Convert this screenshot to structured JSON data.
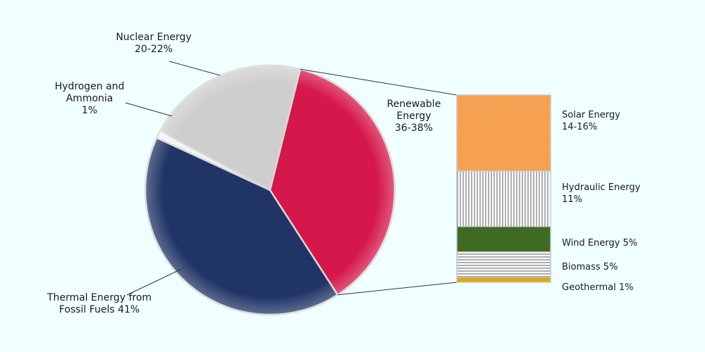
{
  "chart_data": {
    "type": "pie",
    "subtype": "bar-of-pie",
    "title": "",
    "pie": {
      "slices": [
        {
          "key": "renewable",
          "label_lines": [
            "Renewable",
            "Energy",
            "36-38%"
          ],
          "value": 37,
          "color": "#d5174b"
        },
        {
          "key": "thermal",
          "label_lines": [
            "Thermal Energy from",
            "Fossil Fuels 41%"
          ],
          "value": 41,
          "color": "#203566"
        },
        {
          "key": "hydrogen",
          "label_lines": [
            "Hydrogen and",
            "Ammonia",
            "1%"
          ],
          "value": 1,
          "color": "#f4f4f4"
        },
        {
          "key": "nuclear",
          "label_lines": [
            "Nuclear Energy",
            "20-22%"
          ],
          "value": 21,
          "color": "#cecece"
        }
      ]
    },
    "breakdown": {
      "of": "renewable",
      "segments": [
        {
          "key": "solar",
          "label_lines": [
            "Solar Energy",
            "14-16%"
          ],
          "value": 15,
          "color": "#f5963c",
          "pattern": "dots"
        },
        {
          "key": "hydraulic",
          "label_lines": [
            "Hydraulic Energy",
            "11%"
          ],
          "value": 11,
          "color": "#ffffff",
          "pattern": "vlines"
        },
        {
          "key": "wind",
          "label_lines": [
            "Wind Energy 5%"
          ],
          "value": 5,
          "color": "#3f6a24",
          "pattern": "solid"
        },
        {
          "key": "biomass",
          "label_lines": [
            "Biomass 5%"
          ],
          "value": 5,
          "color": "#ffffff",
          "pattern": "hlines"
        },
        {
          "key": "geothermal",
          "label_lines": [
            "Geothermal 1%"
          ],
          "value": 1,
          "color": "#e0a817",
          "pattern": "solid"
        }
      ]
    }
  }
}
